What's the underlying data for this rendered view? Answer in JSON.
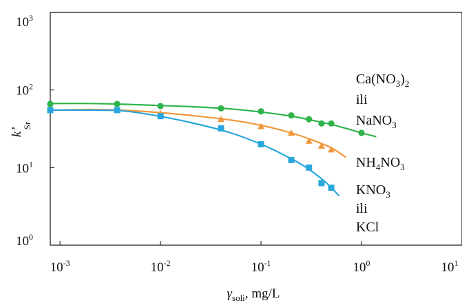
{
  "chart_data": {
    "type": "scatter",
    "x_scale": "log",
    "y_scale": "log",
    "xlim": [
      0.0008,
      10
    ],
    "ylim": [
      1,
      1000
    ],
    "grid": false,
    "legend": "none",
    "xlabel": {
      "main": "γ",
      "sub": "soli",
      "rest": ", mg/L"
    },
    "ylabel": {
      "main": "k’",
      "sub": "Sr"
    },
    "x_ticks": [
      {
        "value": 0.001,
        "base": "10",
        "exp": "-3"
      },
      {
        "value": 0.01,
        "base": "10",
        "exp": "-2"
      },
      {
        "value": 0.1,
        "base": "10",
        "exp": "-1"
      },
      {
        "value": 1,
        "base": "10",
        "exp": "0"
      },
      {
        "value": 10,
        "base": "10",
        "exp": "1"
      }
    ],
    "y_ticks": [
      {
        "value": 1,
        "base": "10",
        "exp": "0"
      },
      {
        "value": 10,
        "base": "10",
        "exp": "1"
      },
      {
        "value": 100,
        "base": "10",
        "exp": "2"
      },
      {
        "value": 1000,
        "base": "10",
        "exp": "3"
      }
    ],
    "series": [
      {
        "name": "Ca(NO3)2 ili NaNO3",
        "color": "#2db34a",
        "marker": "circle",
        "points": [
          [
            0.0008,
            66
          ],
          [
            0.0037,
            66
          ],
          [
            0.01,
            62
          ],
          [
            0.04,
            58
          ],
          [
            0.1,
            53
          ],
          [
            0.2,
            47
          ],
          [
            0.3,
            42
          ],
          [
            0.4,
            37
          ],
          [
            0.5,
            37
          ],
          [
            1.0,
            28
          ]
        ],
        "curve": [
          [
            0.0008,
            67
          ],
          [
            0.002,
            67
          ],
          [
            0.005,
            65
          ],
          [
            0.01,
            63
          ],
          [
            0.02,
            61
          ],
          [
            0.05,
            57
          ],
          [
            0.1,
            52
          ],
          [
            0.2,
            46
          ],
          [
            0.3,
            41.5
          ],
          [
            0.5,
            36
          ],
          [
            0.7,
            32
          ],
          [
            1.0,
            28
          ],
          [
            1.4,
            25
          ]
        ],
        "label_lines": [
          {
            "parts": [
              {
                "t": "Ca(NO"
              },
              {
                "t": "3",
                "sub": true
              },
              {
                "t": ")"
              },
              {
                "t": "2",
                "sub": true
              }
            ]
          },
          {
            "parts": [
              {
                "t": "ili"
              }
            ]
          },
          {
            "parts": [
              {
                "t": "NaNO"
              },
              {
                "t": "3",
                "sub": true
              }
            ]
          }
        ]
      },
      {
        "name": "NH4NO3",
        "color": "#f0973a",
        "marker": "triangle",
        "points": [
          [
            0.0037,
            55
          ],
          [
            0.01,
            50
          ],
          [
            0.04,
            42
          ],
          [
            0.1,
            34
          ],
          [
            0.2,
            28
          ],
          [
            0.3,
            22
          ],
          [
            0.4,
            19
          ],
          [
            0.5,
            17
          ]
        ],
        "curve": [
          [
            0.0008,
            55
          ],
          [
            0.002,
            56
          ],
          [
            0.004,
            55
          ],
          [
            0.01,
            51
          ],
          [
            0.02,
            47
          ],
          [
            0.05,
            41
          ],
          [
            0.1,
            35
          ],
          [
            0.2,
            28
          ],
          [
            0.3,
            23.5
          ],
          [
            0.5,
            18
          ],
          [
            0.7,
            13.5
          ]
        ],
        "label_lines": [
          {
            "parts": [
              {
                "t": "NH"
              },
              {
                "t": "4",
                "sub": true
              },
              {
                "t": "NO"
              },
              {
                "t": "3",
                "sub": true
              }
            ]
          }
        ]
      },
      {
        "name": "KNO3 ili KCl",
        "color": "#2aa7dc",
        "marker": "square",
        "points": [
          [
            0.0008,
            55
          ],
          [
            0.0037,
            55
          ],
          [
            0.01,
            46
          ],
          [
            0.04,
            32
          ],
          [
            0.1,
            20
          ],
          [
            0.2,
            12.5
          ],
          [
            0.3,
            10
          ],
          [
            0.4,
            6.3
          ],
          [
            0.5,
            5.5
          ]
        ],
        "curve": [
          [
            0.0008,
            55
          ],
          [
            0.002,
            55
          ],
          [
            0.004,
            54
          ],
          [
            0.008,
            48
          ],
          [
            0.02,
            38
          ],
          [
            0.05,
            28
          ],
          [
            0.1,
            20
          ],
          [
            0.2,
            13
          ],
          [
            0.3,
            9.5
          ],
          [
            0.45,
            6.3
          ],
          [
            0.6,
            4.3
          ]
        ],
        "label_lines": [
          {
            "parts": [
              {
                "t": "KNO"
              },
              {
                "t": "3",
                "sub": true
              }
            ]
          },
          {
            "parts": [
              {
                "t": "ili"
              }
            ]
          },
          {
            "parts": [
              {
                "t": "KCl"
              }
            ]
          }
        ]
      }
    ]
  }
}
